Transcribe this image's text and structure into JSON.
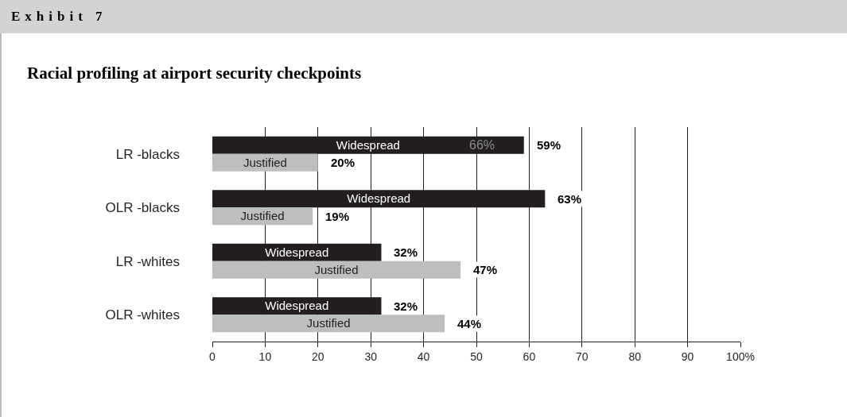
{
  "chart_data": {
    "type": "bar",
    "orientation": "horizontal",
    "title": "Exhibit 7",
    "subtitle": "Racial profiling at airport security checkpoints",
    "categories": [
      "LR -blacks",
      "OLR -blacks",
      "LR -whites",
      "OLR -whites"
    ],
    "series": [
      {
        "name": "Widespread",
        "color": "#231f20",
        "values": [
          59,
          63,
          32,
          32
        ],
        "value_labels": [
          "59%",
          "63%",
          "32%",
          "32%"
        ]
      },
      {
        "name": "Justified",
        "color": "#bcbec0",
        "values": [
          20,
          19,
          47,
          44
        ],
        "value_labels": [
          "20%",
          "19%",
          "47%",
          "44%"
        ]
      }
    ],
    "xlim": [
      0,
      100
    ],
    "xticks": [
      0,
      10,
      20,
      30,
      40,
      50,
      60,
      70,
      80,
      90,
      {
        "value": 100,
        "label": "100%"
      }
    ],
    "grid": "x",
    "legend": false,
    "annotations": [
      {
        "text": "66%",
        "x": 51,
        "y": "LR -blacks"
      }
    ]
  }
}
